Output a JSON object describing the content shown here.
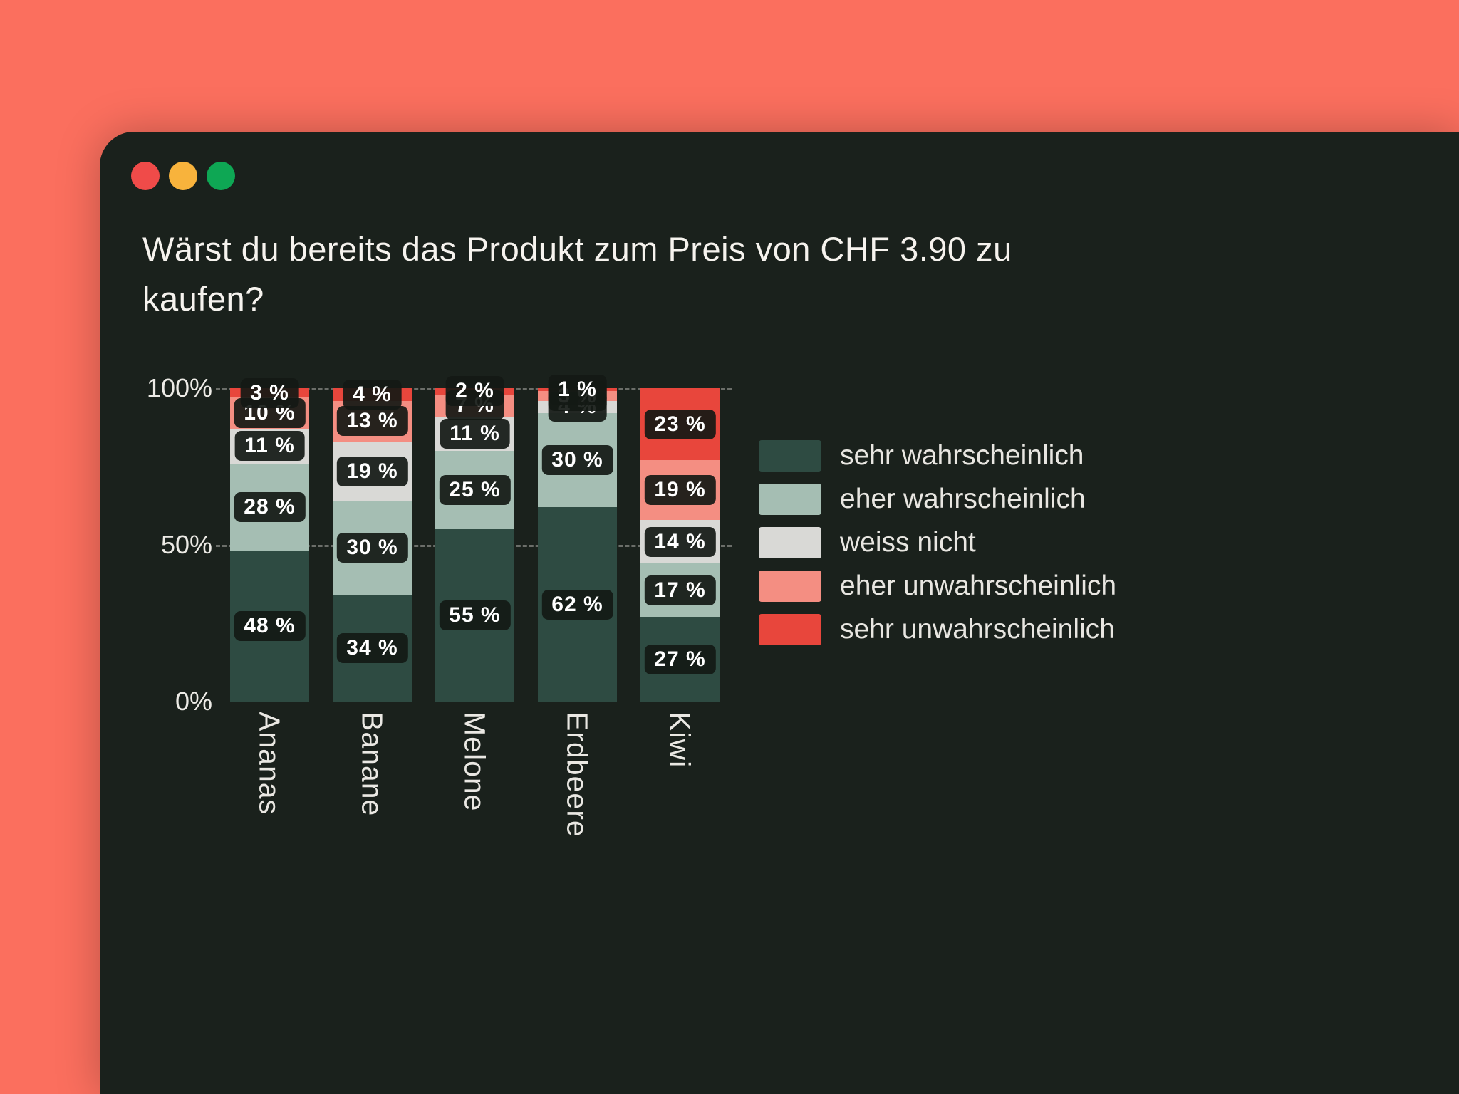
{
  "colors": {
    "background": "#FB6F5E",
    "window": "#1A211C",
    "dot_red": "#F04B49",
    "dot_yellow": "#F8B33C",
    "dot_green": "#0EA754"
  },
  "window_controls": {
    "close": "red-dot",
    "minimize": "yellow-dot",
    "maximize": "green-dot"
  },
  "chart_data": {
    "type": "bar",
    "stacked": true,
    "percent": true,
    "title": "Wärst du bereits das Produkt zum Preis von CHF 3.90 zu kaufen?",
    "categories": [
      "Ananas",
      "Banane",
      "Melone",
      "Erdbeere",
      "Kiwi"
    ],
    "series": [
      {
        "name": "sehr wahrscheinlich",
        "color": "#2E4B42",
        "values": [
          48,
          34,
          55,
          62,
          27
        ]
      },
      {
        "name": "eher wahrscheinlich",
        "color": "#A5BEB3",
        "values": [
          28,
          30,
          25,
          30,
          17
        ]
      },
      {
        "name": "weiss nicht",
        "color": "#D9D9D6",
        "values": [
          11,
          19,
          11,
          4,
          14
        ]
      },
      {
        "name": "eher unwahrscheinlich",
        "color": "#F48E82",
        "values": [
          10,
          13,
          7,
          3,
          19
        ]
      },
      {
        "name": "sehr unwahrscheinlich",
        "color": "#E8463C",
        "values": [
          3,
          4,
          2,
          1,
          23
        ]
      }
    ],
    "y_ticks": [
      "0%",
      "50%",
      "100%"
    ],
    "ylim": [
      0,
      100
    ],
    "xlabel": "",
    "ylabel": "",
    "grid": "dashed-horizontal",
    "legend_position": "right",
    "value_label_format": "{v} %"
  }
}
